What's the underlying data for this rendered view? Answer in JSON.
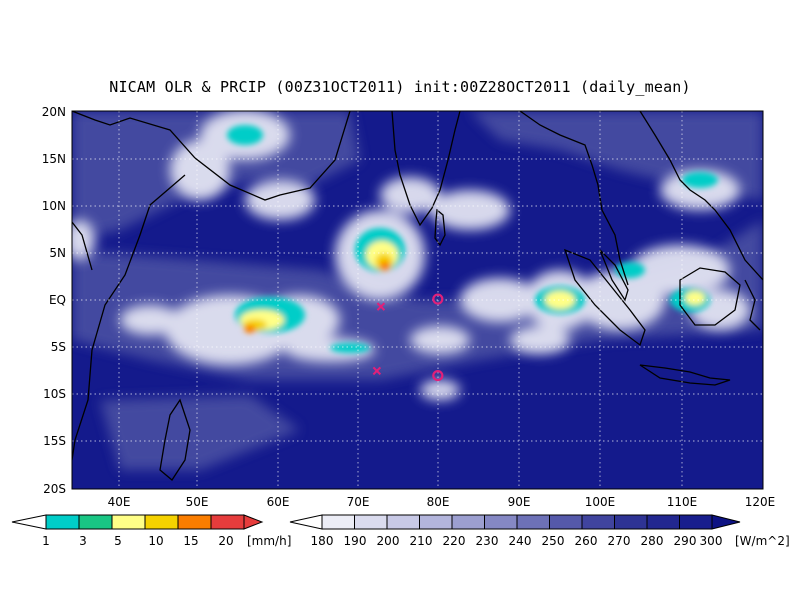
{
  "title": "NICAM OLR & PRCIP (00Z31OCT2011) init:00Z28OCT2011 (daily_mean)",
  "map": {
    "lon_range": [
      35,
      120
    ],
    "lat_range": [
      -20,
      20
    ],
    "lat_labels": [
      "20N",
      "15N",
      "10N",
      "5N",
      "EQ",
      "5S",
      "10S",
      "15S",
      "20S"
    ],
    "lon_labels": [
      "40E",
      "50E",
      "60E",
      "70E",
      "80E",
      "90E",
      "100E",
      "110E",
      "120E"
    ],
    "ocean_color": "#141a8c",
    "markers": [
      {
        "type": "x",
        "lon": 73,
        "lat": -0.7
      },
      {
        "type": "x",
        "lon": 72.5,
        "lat": -7.5
      },
      {
        "type": "o",
        "lon": 80,
        "lat": 0.1
      },
      {
        "type": "o",
        "lon": 80,
        "lat": -8
      }
    ]
  },
  "precip_bar": {
    "unit": "[mm/h]",
    "labels": [
      "1",
      "3",
      "5",
      "10",
      "15",
      "20"
    ],
    "colors": [
      "#00cdc8",
      "#19c684",
      "#ffff87",
      "#f5d200",
      "#fa7d00",
      "#e63c3c"
    ]
  },
  "olr_bar": {
    "unit": "[W/m^2]",
    "labels": [
      "180",
      "190",
      "200",
      "210",
      "220",
      "230",
      "240",
      "250",
      "260",
      "270",
      "280",
      "290",
      "300"
    ],
    "colors": [
      "#ecedf6",
      "#dadbee",
      "#c8c9e6",
      "#b3b5dc",
      "#9c9fd0",
      "#8588c4",
      "#6d71b7",
      "#5559aa",
      "#40449e",
      "#2e3394",
      "#222790",
      "#181e8d",
      "#111687"
    ]
  }
}
